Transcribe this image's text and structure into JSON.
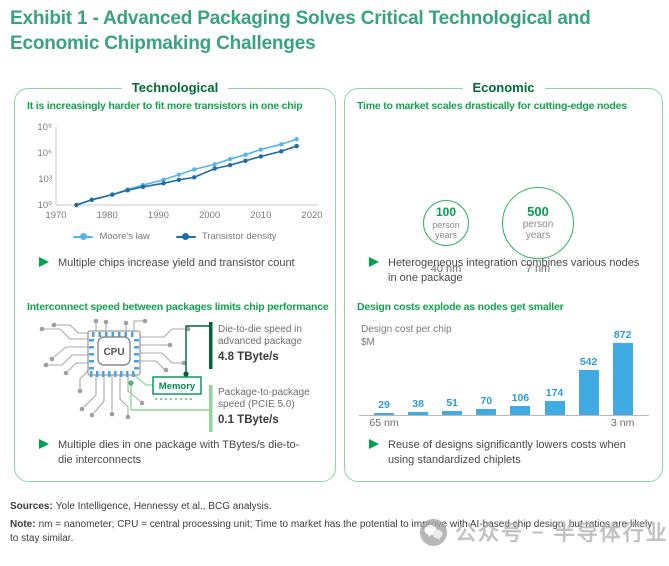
{
  "title": "Exhibit 1 - Advanced Packaging Solves Critical Technological and Economic Chipmaking Challenges",
  "left_panel": {
    "header": "Technological",
    "section2_title": "Interconnect speed between packages limits chip performance",
    "bullet1": "Multiple chips increase yield and transistor count",
    "bullet2": "Multiple dies in one package with TBytes/s die-to-die interconnects",
    "diagram": {
      "cpu_label": "CPU",
      "memory_label": "Memory",
      "callout1_line1": "Die-to-die speed in",
      "callout1_line2": "advanced package",
      "callout1_value": "4.8 TByte/s",
      "callout2_line1": "Package-to-package",
      "callout2_line2": "speed (PCIE 5.0)",
      "callout2_value": "0.1 TByte/s"
    }
  },
  "right_panel": {
    "header": "Economic",
    "bullet1": "Heterogeneous integration combines various nodes in one package",
    "bullet2": "Reuse of designs significantly lowers costs when using standardized chiplets"
  },
  "footer": {
    "sources_label": "Sources:",
    "sources_text": "Yole Intelligence, Hennessy et al., BCG analysis.",
    "note_label": "Note:",
    "note_text": "nm = nanometer; CPU = central processing unit; Time to market has the potential to improve with AI-based chip design, but ratios are likely to stay similar."
  },
  "watermark": {
    "icon": "wechat-icon",
    "label": "公众号",
    "separator": "–",
    "name": "半导体行业观察"
  },
  "colors": {
    "title_green": "#38a283",
    "panel_border_green": "#8fd4a8",
    "panel_header_green": "#006a39",
    "section_green": "#15a24e",
    "bullet_green": "#00a14e",
    "moores_law_blue": "#56b5e6",
    "transistor_density_blue": "#1e6ca5",
    "bar_blue": "#3fabe2",
    "dark_green_callout": "#00643a",
    "light_green_callout": "#8fd49a",
    "memory_green": "#00904c",
    "gray_text": "#7a7a7a"
  },
  "chart_data": [
    {
      "type": "line",
      "title": "It is increasingly harder to fit more transistors in one chip",
      "x": [
        1974,
        1977,
        1981,
        1984,
        1987,
        1991,
        1994,
        1997,
        2001,
        2004,
        2007,
        2010,
        2014,
        2017
      ],
      "series": [
        {
          "name": "Moore's law",
          "color": "#56b5e6",
          "values_log10": [
            0,
            0.6,
            1.2,
            1.8,
            2.3,
            2.9,
            3.5,
            4.1,
            4.7,
            5.3,
            5.8,
            6.4,
            7.0,
            7.6
          ]
        },
        {
          "name": "Transistor density",
          "color": "#1e6ca5",
          "values_log10": [
            0,
            0.6,
            1.2,
            1.7,
            2.1,
            2.5,
            2.9,
            3.2,
            4.2,
            4.6,
            5.1,
            5.6,
            6.2,
            6.8
          ]
        }
      ],
      "yscale": "log",
      "ytick_labels": [
        "10⁰",
        "10³",
        "10⁶",
        "10⁹"
      ],
      "ytick_exponents": [
        0,
        3,
        6,
        9
      ],
      "xticks": [
        1970,
        1980,
        1990,
        2000,
        2010,
        2020
      ],
      "xlim": [
        1970,
        2022
      ],
      "ylim_log10": [
        0,
        9
      ],
      "grid": false,
      "legend_position": "bottom"
    },
    {
      "type": "bubble",
      "title": "Time to market scales drastically for cutting-edge nodes",
      "items": [
        {
          "value": 100,
          "unit": "person years",
          "category": "40 nm"
        },
        {
          "value": 500,
          "unit": "person years",
          "category": "7 nm"
        }
      ]
    },
    {
      "type": "bar",
      "title": "Design costs explode as nodes get smaller",
      "ylabel_line1": "Design cost per chip",
      "ylabel_line2": "$M",
      "categories": [
        "65 nm",
        "",
        "",
        "",
        "",
        "",
        "",
        "3 nm"
      ],
      "values": [
        29,
        38,
        51,
        70,
        106,
        174,
        542,
        872
      ],
      "bar_color": "#3fabe2",
      "ylim": [
        0,
        900
      ],
      "grid": false
    }
  ]
}
